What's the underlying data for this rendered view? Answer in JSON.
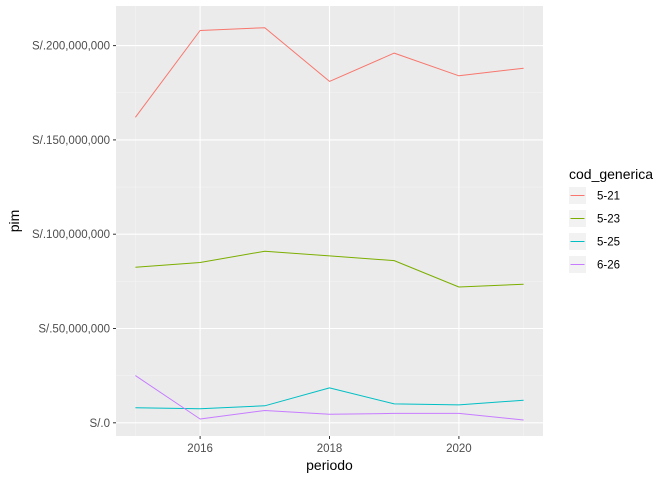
{
  "chart_data": {
    "type": "line",
    "xlabel": "periodo",
    "ylabel": "pim",
    "x_ticks": [
      2016,
      2018,
      2020
    ],
    "y_ticks": [
      0,
      50000000,
      100000000,
      150000000,
      200000000
    ],
    "y_tick_labels": [
      "S/.0",
      "S/.50,000,000",
      "S/.100,000,000",
      "S/.150,000,000",
      "S/.200,000,000"
    ],
    "xlim": [
      2014.7,
      2021.3
    ],
    "ylim": [
      -7000000,
      221000000
    ],
    "grid": true,
    "background": "#ebebeb",
    "legend": {
      "title": "cod_generica",
      "position": "right"
    },
    "x": [
      2015,
      2016,
      2017,
      2018,
      2019,
      2020,
      2021
    ],
    "series": [
      {
        "name": "5-21",
        "color": "#f8766d",
        "values": [
          162000000,
          208000000,
          209500000,
          181000000,
          196000000,
          184000000,
          188000000
        ]
      },
      {
        "name": "5-23",
        "color": "#7cae00",
        "values": [
          82500000,
          85000000,
          91000000,
          88500000,
          86000000,
          72000000,
          73500000
        ]
      },
      {
        "name": "5-25",
        "color": "#00bfc4",
        "values": [
          8000000,
          7500000,
          9000000,
          18500000,
          10000000,
          9500000,
          12000000
        ]
      },
      {
        "name": "6-26",
        "color": "#c77cff",
        "values": [
          25000000,
          2000000,
          6500000,
          4500000,
          5000000,
          5000000,
          1500000
        ]
      }
    ]
  }
}
